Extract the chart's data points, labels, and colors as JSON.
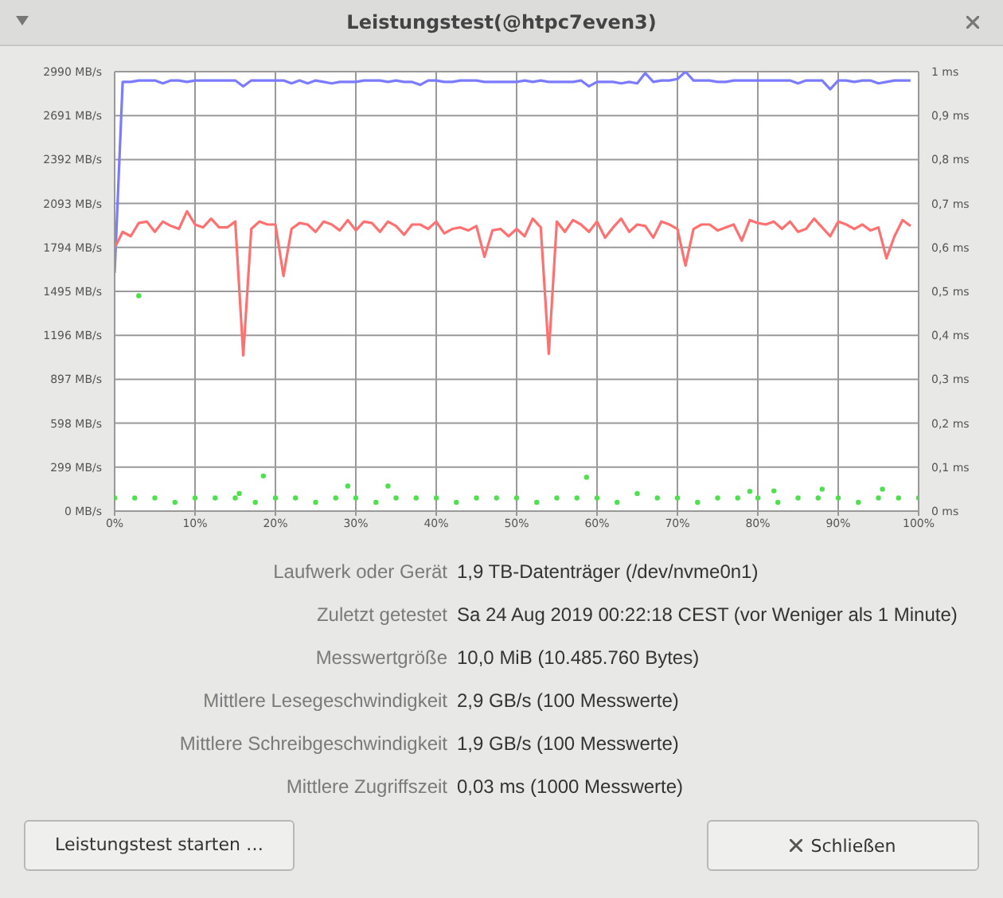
{
  "chart_data": {
    "type": "line",
    "title": "Leistungstest(@htpc7even3)",
    "x": [
      0,
      1,
      2,
      3,
      4,
      5,
      6,
      7,
      8,
      9,
      10,
      11,
      12,
      13,
      14,
      15,
      16,
      17,
      18,
      19,
      20,
      21,
      22,
      23,
      24,
      25,
      26,
      27,
      28,
      29,
      30,
      31,
      32,
      33,
      34,
      35,
      36,
      37,
      38,
      39,
      40,
      41,
      42,
      43,
      44,
      45,
      46,
      47,
      48,
      49,
      50,
      51,
      52,
      53,
      54,
      55,
      56,
      57,
      58,
      59,
      60,
      61,
      62,
      63,
      64,
      65,
      66,
      67,
      68,
      69,
      70,
      71,
      72,
      73,
      74,
      75,
      76,
      77,
      78,
      79,
      80,
      81,
      82,
      83,
      84,
      85,
      86,
      87,
      88,
      89,
      90,
      91,
      92,
      93,
      94,
      95,
      96,
      97,
      98,
      99
    ],
    "series": [
      {
        "color": "#7b7bff",
        "marker": "none",
        "values": [
          1620,
          2920,
          2920,
          2930,
          2930,
          2930,
          2910,
          2930,
          2930,
          2920,
          2930,
          2930,
          2930,
          2930,
          2930,
          2930,
          2890,
          2930,
          2930,
          2930,
          2930,
          2930,
          2910,
          2930,
          2910,
          2930,
          2920,
          2910,
          2920,
          2920,
          2920,
          2930,
          2930,
          2930,
          2920,
          2930,
          2920,
          2920,
          2900,
          2930,
          2930,
          2920,
          2920,
          2930,
          2930,
          2930,
          2920,
          2920,
          2920,
          2920,
          2920,
          2930,
          2920,
          2930,
          2920,
          2920,
          2920,
          2920,
          2930,
          2890,
          2920,
          2920,
          2920,
          2910,
          2920,
          2910,
          2980,
          2920,
          2930,
          2930,
          2940,
          2990,
          2930,
          2930,
          2930,
          2920,
          2920,
          2930,
          2930,
          2930,
          2930,
          2930,
          2930,
          2930,
          2930,
          2910,
          2930,
          2930,
          2930,
          2870,
          2930,
          2930,
          2920,
          2930,
          2930,
          2910,
          2920,
          2930,
          2930,
          2930
        ]
      },
      {
        "color": "#ff7070",
        "marker": "none",
        "values": [
          1790,
          1900,
          1870,
          1960,
          1970,
          1900,
          1970,
          1940,
          1920,
          2040,
          1950,
          1930,
          1990,
          1930,
          1930,
          1970,
          1060,
          1920,
          1970,
          1950,
          1950,
          1600,
          1920,
          1960,
          1950,
          1900,
          1970,
          1950,
          1910,
          1980,
          1910,
          1970,
          1960,
          1900,
          1970,
          1940,
          1880,
          1950,
          1950,
          1920,
          1970,
          1890,
          1920,
          1930,
          1910,
          1940,
          1730,
          1910,
          1920,
          1870,
          1920,
          1870,
          1990,
          1930,
          1070,
          1970,
          1900,
          1980,
          1950,
          1900,
          1970,
          1860,
          1930,
          1990,
          1900,
          1950,
          1940,
          1860,
          1970,
          1950,
          1920,
          1670,
          1920,
          1950,
          1950,
          1910,
          1930,
          1950,
          1840,
          1980,
          1960,
          1950,
          1970,
          1920,
          1970,
          1900,
          1920,
          1990,
          1930,
          1870,
          1970,
          1950,
          1920,
          1950,
          1910,
          1930,
          1720,
          1870,
          1980,
          1940
        ]
      },
      {
        "type": "scatter",
        "axis": "y2",
        "color": "#4ee04e",
        "marker": "circle",
        "x": [
          0,
          2.5,
          3,
          5,
          7.5,
          10,
          12.5,
          15,
          15.5,
          17.5,
          18.5,
          20,
          22.5,
          25,
          27.5,
          29,
          30,
          32.5,
          34,
          35,
          37.5,
          40,
          42.5,
          45,
          47.5,
          50,
          52.5,
          55,
          57.5,
          58.7,
          60,
          62.5,
          65,
          67.5,
          70,
          72.5,
          75,
          77.5,
          79,
          80,
          82,
          82.5,
          85,
          87.5,
          88,
          90,
          92.5,
          95,
          95.5,
          97.5,
          100
        ],
        "values": [
          0.03,
          0.03,
          0.49,
          0.03,
          0.02,
          0.03,
          0.03,
          0.03,
          0.04,
          0.02,
          0.08,
          0.03,
          0.03,
          0.02,
          0.03,
          0.057,
          0.03,
          0.02,
          0.057,
          0.03,
          0.03,
          0.03,
          0.02,
          0.03,
          0.03,
          0.03,
          0.02,
          0.03,
          0.03,
          0.077,
          0.03,
          0.02,
          0.04,
          0.03,
          0.03,
          0.02,
          0.03,
          0.03,
          0.045,
          0.03,
          0.046,
          0.02,
          0.03,
          0.03,
          0.05,
          0.03,
          0.02,
          0.03,
          0.05,
          0.03,
          0.03
        ]
      }
    ],
    "xlim": [
      0,
      100
    ],
    "xticks": [
      {
        "value": 0,
        "label": "0%"
      },
      {
        "value": 10,
        "label": "10%"
      },
      {
        "value": 20,
        "label": "20%"
      },
      {
        "value": 30,
        "label": "30%"
      },
      {
        "value": 40,
        "label": "40%"
      },
      {
        "value": 50,
        "label": "50%"
      },
      {
        "value": 60,
        "label": "60%"
      },
      {
        "value": 70,
        "label": "70%"
      },
      {
        "value": 80,
        "label": "80%"
      },
      {
        "value": 90,
        "label": "90%"
      },
      {
        "value": 100,
        "label": "100%"
      }
    ],
    "ylim": [
      0,
      2990
    ],
    "yticks": [
      {
        "value": 0,
        "label": "0 MB/s"
      },
      {
        "value": 299,
        "label": "299 MB/s"
      },
      {
        "value": 598,
        "label": "598 MB/s"
      },
      {
        "value": 897,
        "label": "897 MB/s"
      },
      {
        "value": 1196,
        "label": "1196 MB/s"
      },
      {
        "value": 1495,
        "label": "1495 MB/s"
      },
      {
        "value": 1794,
        "label": "1794 MB/s"
      },
      {
        "value": 2093,
        "label": "2093 MB/s"
      },
      {
        "value": 2392,
        "label": "2392 MB/s"
      },
      {
        "value": 2691,
        "label": "2691 MB/s"
      },
      {
        "value": 2990,
        "label": "2990 MB/s"
      }
    ],
    "y2lim": [
      0,
      1
    ],
    "y2ticks": [
      {
        "value": 0,
        "label": "0 ms"
      },
      {
        "value": 0.1,
        "label": "0,1 ms"
      },
      {
        "value": 0.2,
        "label": "0,2 ms"
      },
      {
        "value": 0.3,
        "label": "0,3 ms"
      },
      {
        "value": 0.4,
        "label": "0,4 ms"
      },
      {
        "value": 0.5,
        "label": "0,5 ms"
      },
      {
        "value": 0.6,
        "label": "0,6 ms"
      },
      {
        "value": 0.7,
        "label": "0,7 ms"
      },
      {
        "value": 0.8,
        "label": "0,8 ms"
      },
      {
        "value": 0.9,
        "label": "0,9 ms"
      },
      {
        "value": 1,
        "label": "1 ms"
      }
    ],
    "grid": true,
    "annotations": [
      "Laufwerk oder Gerät",
      "1,9 TB-Datenträger (/dev/nvme0n1)",
      "Zuletzt getestet",
      "Sa 24 Aug 2019 00:22:18 CEST (vor Weniger als 1 Minute)",
      "Messwertgröße",
      "10,0 MiB (10.485.760 Bytes)",
      "Mittlere Lesegeschwindigkeit",
      "2,9 GB/s (100 Messwerte)",
      "Mittlere Schreibgeschwindigkeit",
      "1,9 GB/s (100 Messwerte)",
      "Mittlere Zugriffszeit",
      "0,03 ms (1000 Messwerte)",
      "Leistungstest starten …",
      "Schließen"
    ]
  }
}
